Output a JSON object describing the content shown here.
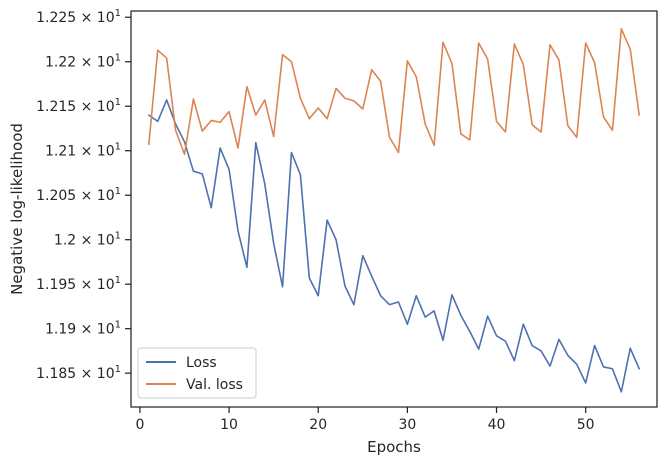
{
  "chart_data": {
    "type": "line",
    "xlabel": "Epochs",
    "ylabel": "Negative log-likelihood",
    "xlim": [
      -1,
      58
    ],
    "ylim": [
      11.812,
      12.257
    ],
    "x_ticks": [
      0,
      10,
      20,
      30,
      40,
      50
    ],
    "y_ticks": [
      {
        "value": 11.85,
        "mantissa": "1.185"
      },
      {
        "value": 11.9,
        "mantissa": "1.19"
      },
      {
        "value": 11.95,
        "mantissa": "1.195"
      },
      {
        "value": 12.0,
        "mantissa": "1.2"
      },
      {
        "value": 12.05,
        "mantissa": "1.205"
      },
      {
        "value": 12.1,
        "mantissa": "1.21"
      },
      {
        "value": 12.15,
        "mantissa": "1.215"
      },
      {
        "value": 12.2,
        "mantissa": "1.22"
      },
      {
        "value": 12.25,
        "mantissa": "1.225"
      }
    ],
    "y_tick_suffix": "× 10",
    "y_tick_exponent": "1",
    "grid": false,
    "legend_position": "bottom-left",
    "x": [
      1,
      2,
      3,
      4,
      5,
      6,
      7,
      8,
      9,
      10,
      11,
      12,
      13,
      14,
      15,
      16,
      17,
      18,
      19,
      20,
      21,
      22,
      23,
      24,
      25,
      26,
      27,
      28,
      29,
      30,
      31,
      32,
      33,
      34,
      35,
      36,
      37,
      38,
      39,
      40,
      41,
      42,
      43,
      44,
      45,
      46,
      47,
      48,
      49,
      50,
      51,
      52,
      53,
      54,
      55,
      56
    ],
    "series": [
      {
        "name": "Loss",
        "color": "#4c72b0",
        "values": [
          12.14,
          12.133,
          12.157,
          12.13,
          12.11,
          12.077,
          12.074,
          12.036,
          12.103,
          12.079,
          12.01,
          11.969,
          12.109,
          12.063,
          11.996,
          11.947,
          12.098,
          12.073,
          11.957,
          11.937,
          12.022,
          12.0,
          11.948,
          11.927,
          11.982,
          11.959,
          11.937,
          11.927,
          11.93,
          11.905,
          11.937,
          11.913,
          11.92,
          11.887,
          11.938,
          11.915,
          11.897,
          11.877,
          11.914,
          11.892,
          11.886,
          11.864,
          11.905,
          11.881,
          11.875,
          11.858,
          11.888,
          11.87,
          11.86,
          11.839,
          11.881,
          11.857,
          11.855,
          11.829,
          11.878,
          11.855
        ]
      },
      {
        "name": "Val. loss",
        "color": "#dd8452",
        "values": [
          12.107,
          12.213,
          12.204,
          12.123,
          12.096,
          12.158,
          12.122,
          12.134,
          12.132,
          12.144,
          12.103,
          12.172,
          12.14,
          12.157,
          12.116,
          12.208,
          12.2,
          12.159,
          12.136,
          12.148,
          12.136,
          12.17,
          12.159,
          12.156,
          12.147,
          12.191,
          12.178,
          12.115,
          12.098,
          12.201,
          12.183,
          12.13,
          12.106,
          12.222,
          12.198,
          12.119,
          12.112,
          12.221,
          12.203,
          12.133,
          12.121,
          12.22,
          12.197,
          12.129,
          12.121,
          12.219,
          12.202,
          12.128,
          12.115,
          12.221,
          12.199,
          12.138,
          12.123,
          12.237,
          12.214,
          12.14
        ]
      }
    ]
  }
}
